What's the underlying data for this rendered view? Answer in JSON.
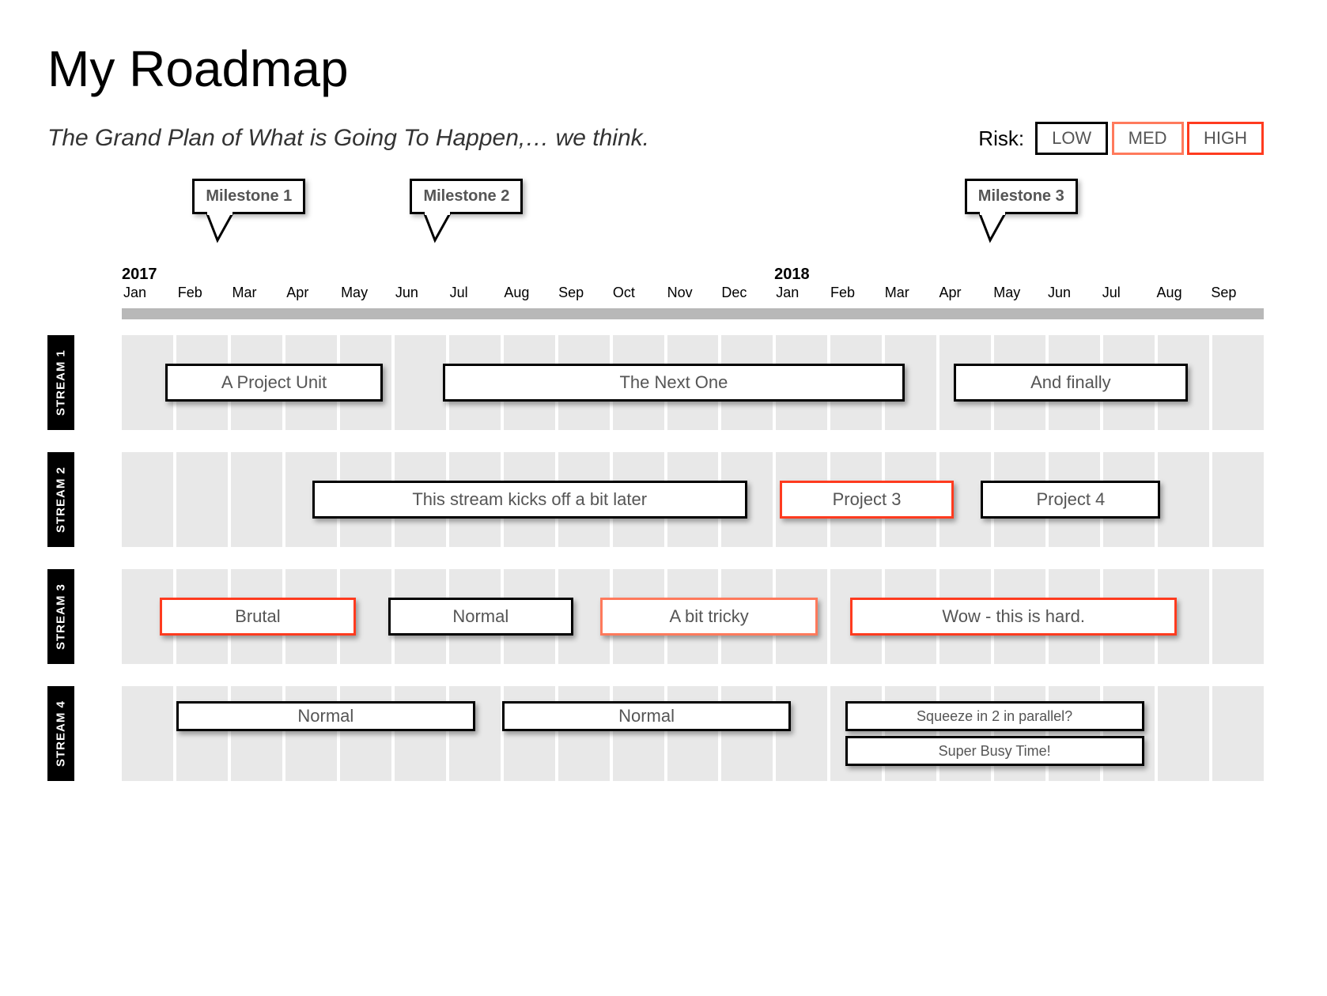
{
  "title": "My Roadmap",
  "subtitle": "The Grand Plan of What is Going To Happen,… we think.",
  "risk": {
    "label": "Risk:",
    "levels": [
      {
        "label": "LOW",
        "border": "#000000"
      },
      {
        "label": "MED",
        "border": "#ff7a5c"
      },
      {
        "label": "HIGH",
        "border": "#ff3b1f"
      }
    ]
  },
  "timeline": {
    "months": [
      "Jan",
      "Feb",
      "Mar",
      "Apr",
      "May",
      "Jun",
      "Jul",
      "Aug",
      "Sep",
      "Oct",
      "Nov",
      "Dec",
      "Jan",
      "Feb",
      "Mar",
      "Apr",
      "May",
      "Jun",
      "Jul",
      "Aug",
      "Sep"
    ],
    "num_months": 21,
    "years": [
      {
        "label": "2017",
        "at_month_index": 0
      },
      {
        "label": "2018",
        "at_month_index": 12
      }
    ]
  },
  "milestones": [
    {
      "label": "Milestone 1",
      "at_month_index": 1.9
    },
    {
      "label": "Milestone 2",
      "at_month_index": 5.9
    },
    {
      "label": "Milestone 3",
      "at_month_index": 16.1
    }
  ],
  "risk_colors": {
    "low": "#000000",
    "med": "#ff7a5c",
    "high": "#ff3b1f"
  },
  "streams": [
    {
      "name": "STREAM 1",
      "tracks": [
        [
          {
            "label": "A Project Unit",
            "start": 0.8,
            "span": 4.0,
            "risk": "low"
          },
          {
            "label": "The Next One",
            "start": 5.9,
            "span": 8.5,
            "risk": "low"
          },
          {
            "label": "And finally",
            "start": 15.3,
            "span": 4.3,
            "risk": "low"
          }
        ]
      ]
    },
    {
      "name": "STREAM 2",
      "tracks": [
        [
          {
            "label": "This stream kicks off a bit later",
            "start": 3.5,
            "span": 8.0,
            "risk": "low"
          },
          {
            "label": "Project 3",
            "start": 12.1,
            "span": 3.2,
            "risk": "high"
          },
          {
            "label": "Project 4",
            "start": 15.8,
            "span": 3.3,
            "risk": "low"
          }
        ]
      ]
    },
    {
      "name": "STREAM 3",
      "tracks": [
        [
          {
            "label": "Brutal",
            "start": 0.7,
            "span": 3.6,
            "risk": "high"
          },
          {
            "label": "Normal",
            "start": 4.9,
            "span": 3.4,
            "risk": "low"
          },
          {
            "label": "A bit tricky",
            "start": 8.8,
            "span": 4.0,
            "risk": "med"
          },
          {
            "label": "Wow - this is hard.",
            "start": 13.4,
            "span": 6.0,
            "risk": "high"
          }
        ]
      ]
    },
    {
      "name": "STREAM 4",
      "tracks": [
        [
          {
            "label": "Normal",
            "start": 1.0,
            "span": 5.5,
            "risk": "low"
          },
          {
            "label": "Normal",
            "start": 7.0,
            "span": 5.3,
            "risk": "low"
          },
          {
            "label": "Squeeze in 2 in parallel?",
            "start": 13.3,
            "span": 5.5,
            "risk": "low",
            "fontsize": 18
          }
        ],
        [
          {
            "label": "Super Busy Time!",
            "start": 13.3,
            "span": 5.5,
            "risk": "low",
            "fontsize": 18
          }
        ]
      ]
    }
  ]
}
